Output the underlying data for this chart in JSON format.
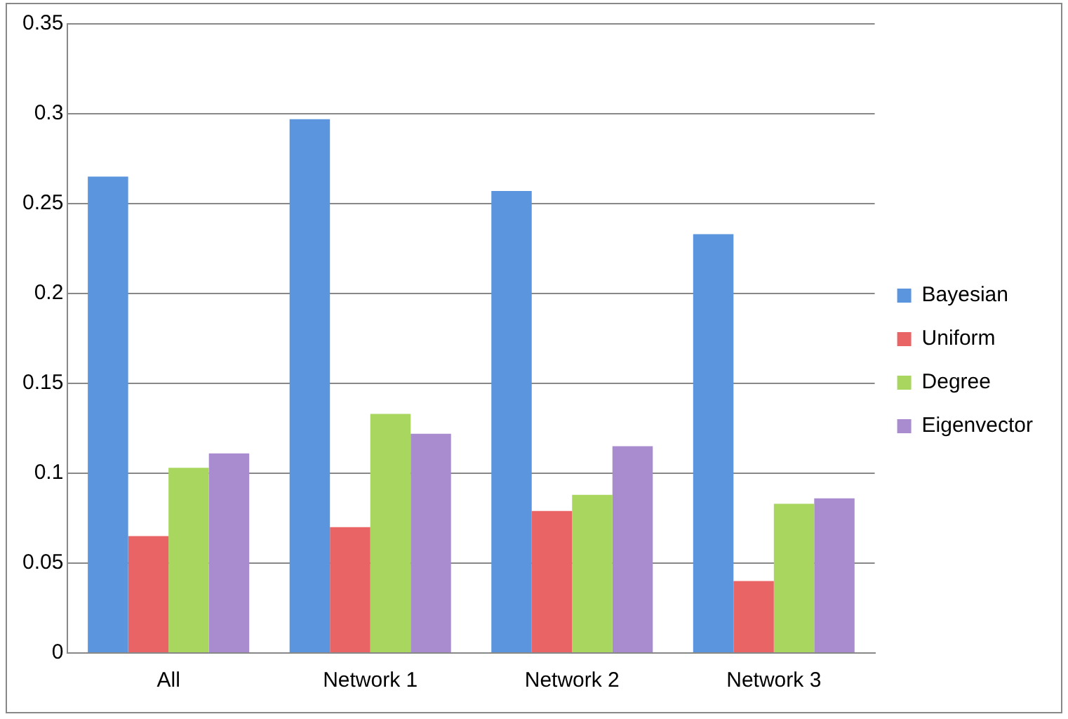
{
  "chart_data": {
    "type": "bar",
    "categories": [
      "All",
      "Network 1",
      "Network 2",
      "Network 3"
    ],
    "series": [
      {
        "name": "Bayesian",
        "color": "#5b95de",
        "values": [
          0.265,
          0.297,
          0.257,
          0.233
        ]
      },
      {
        "name": "Uniform",
        "color": "#e96464",
        "values": [
          0.065,
          0.07,
          0.079,
          0.04
        ]
      },
      {
        "name": "Degree",
        "color": "#a8d65e",
        "values": [
          0.103,
          0.133,
          0.088,
          0.083
        ]
      },
      {
        "name": "Eigenvector",
        "color": "#a98bd0",
        "values": [
          0.111,
          0.122,
          0.115,
          0.086
        ]
      }
    ],
    "ylim": [
      0,
      0.35
    ],
    "yticks": [
      0,
      0.05,
      0.1,
      0.15,
      0.2,
      0.25,
      0.3,
      0.35
    ],
    "grid": "y",
    "legend": "right"
  }
}
